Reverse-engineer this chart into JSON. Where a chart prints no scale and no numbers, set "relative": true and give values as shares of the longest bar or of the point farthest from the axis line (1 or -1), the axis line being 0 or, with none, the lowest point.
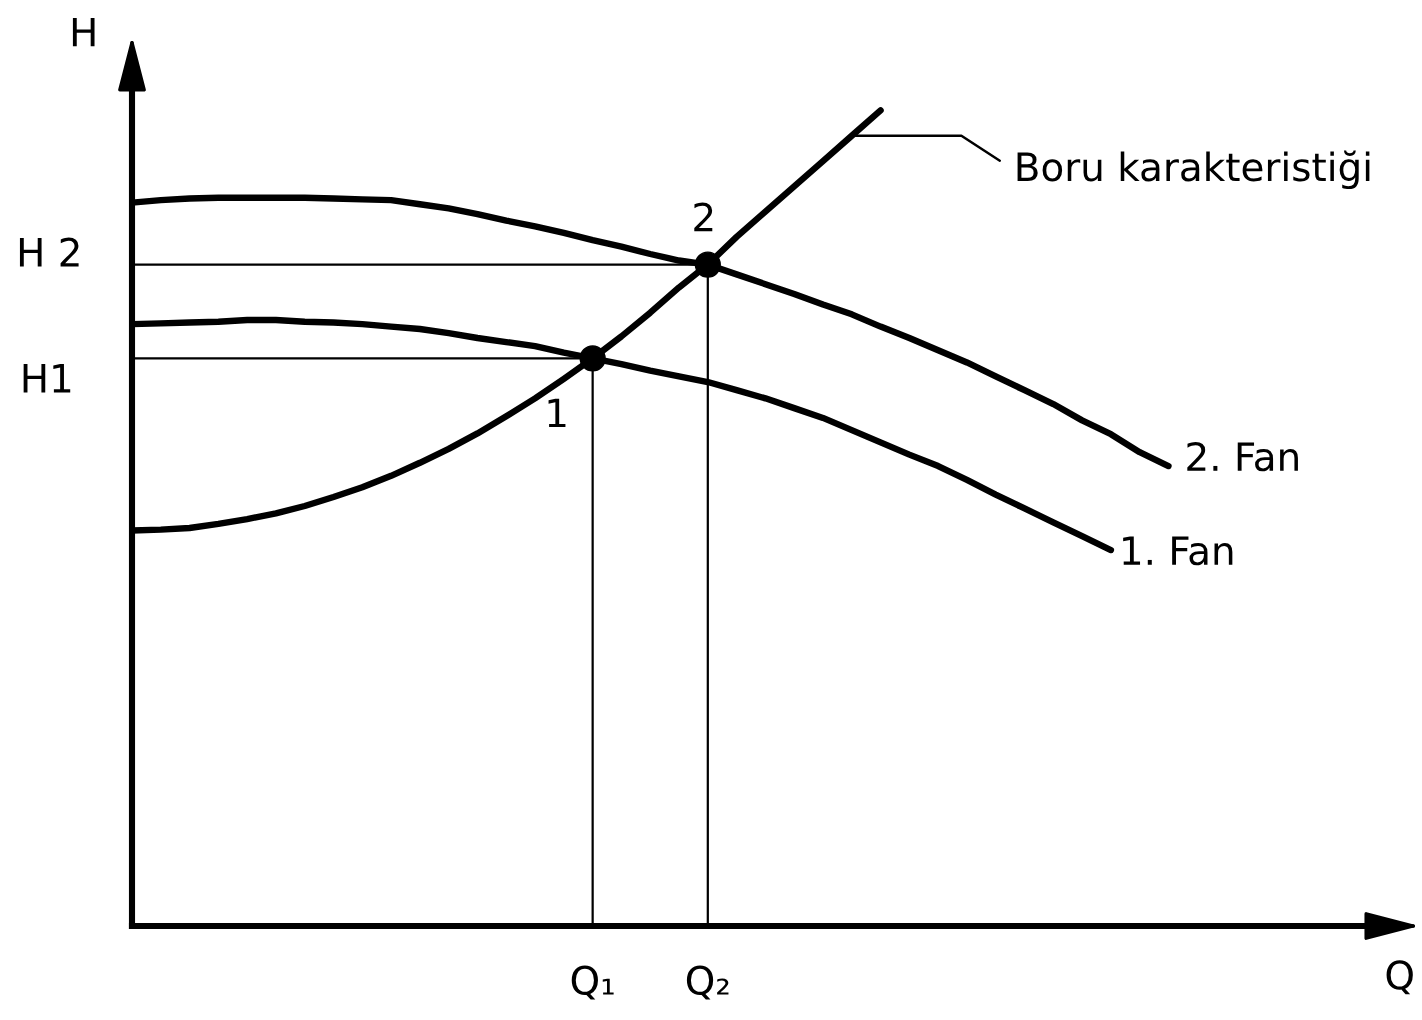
{
  "chart_data": {
    "type": "line",
    "relative": true,
    "xlabel": "Q",
    "ylabel": "H",
    "categories": [
      null,
      null,
      null,
      null,
      null,
      null,
      null,
      null,
      null,
      null,
      null,
      null,
      null,
      null,
      null,
      null,
      "Q₁",
      null,
      null,
      null,
      "Q₂",
      null,
      null,
      null,
      null,
      null,
      null,
      null,
      null,
      null,
      null,
      null,
      null,
      null,
      null,
      null,
      null,
      null,
      null,
      null,
      null,
      null,
      null,
      null
    ],
    "series": [
      {
        "color": "#000000",
        "values": [
          0.696,
          0.696,
          0.696,
          0.696,
          0.696,
          0.696,
          0.696,
          0.696,
          0.696,
          0.696,
          0.696,
          0.696,
          0.696,
          0.696,
          0.696,
          0.696,
          0.696,
          null,
          null,
          null,
          null,
          null,
          null,
          null,
          null,
          null,
          null,
          null,
          null,
          null,
          null,
          null,
          null,
          null,
          null,
          null,
          null,
          null,
          null,
          null,
          null,
          null,
          null,
          null
        ]
      },
      {
        "color": "#000000",
        "x": [
          "Q₁",
          "Q₁"
        ],
        "values": [
          0,
          0.696
        ]
      },
      {
        "color": "#000000",
        "values": [
          0.811,
          0.811,
          0.811,
          0.811,
          0.811,
          0.811,
          0.811,
          0.811,
          0.811,
          0.811,
          0.811,
          0.811,
          0.811,
          0.811,
          0.811,
          0.811,
          0.811,
          0.811,
          0.811,
          0.811,
          0.811,
          null,
          null,
          null,
          null,
          null,
          null,
          null,
          null,
          null,
          null,
          null,
          null,
          null,
          null,
          null,
          null,
          null,
          null,
          null,
          null,
          null,
          null,
          null
        ]
      },
      {
        "color": "#000000",
        "x": [
          "Q₂",
          "Q₂"
        ],
        "values": [
          0,
          0.811
        ]
      },
      {
        "name": "Boru karakteristiği",
        "color": "#000000",
        "values": [
          0.485,
          0.486,
          0.488,
          0.493,
          0.499,
          0.506,
          0.515,
          0.526,
          0.538,
          0.552,
          0.568,
          0.585,
          0.604,
          0.625,
          0.647,
          0.671,
          0.696,
          0.723,
          0.752,
          0.783,
          0.811,
          0.845,
          0.876,
          0.907,
          0.938,
          0.969,
          1.0,
          null,
          null,
          null,
          null,
          null,
          null,
          null,
          null,
          null,
          null,
          null,
          null,
          null,
          null,
          null,
          null,
          null
        ]
      },
      {
        "name": "2. Fan",
        "color": "#000000",
        "values": [
          0.887,
          0.89,
          0.892,
          0.893,
          0.893,
          0.893,
          0.893,
          0.892,
          0.891,
          0.89,
          0.885,
          0.88,
          0.873,
          0.865,
          0.858,
          0.85,
          0.841,
          0.833,
          0.824,
          0.816,
          0.811,
          0.799,
          0.787,
          0.775,
          0.762,
          0.75,
          0.735,
          0.721,
          0.706,
          0.691,
          0.674,
          0.657,
          0.64,
          0.62,
          0.603,
          0.581,
          0.564,
          null,
          null,
          null,
          null,
          null,
          null,
          null
        ]
      },
      {
        "name": "1. Fan",
        "color": "#000000",
        "values": [
          0.738,
          0.739,
          0.74,
          0.741,
          0.743,
          0.743,
          0.741,
          0.74,
          0.738,
          0.735,
          0.732,
          0.727,
          0.721,
          0.716,
          0.711,
          0.703,
          0.696,
          0.689,
          0.681,
          0.674,
          0.667,
          0.657,
          0.647,
          0.635,
          0.623,
          0.608,
          0.593,
          0.578,
          0.564,
          0.547,
          0.529,
          0.512,
          0.495,
          0.478,
          0.461,
          null,
          null,
          null,
          null,
          null,
          null,
          null,
          null,
          null
        ]
      },
      {
        "type": "scatter",
        "color": "#000000",
        "marker": "circle",
        "x": [
          "Q₁",
          "Q₂"
        ],
        "values": [
          0.696,
          0.811
        ]
      }
    ],
    "annotations": [
      "H 2",
      "H1",
      {
        "text": "1",
        "x": "Q₁",
        "y": 0.696
      },
      {
        "text": "2",
        "x": "Q₂",
        "y": 0.811
      }
    ]
  }
}
